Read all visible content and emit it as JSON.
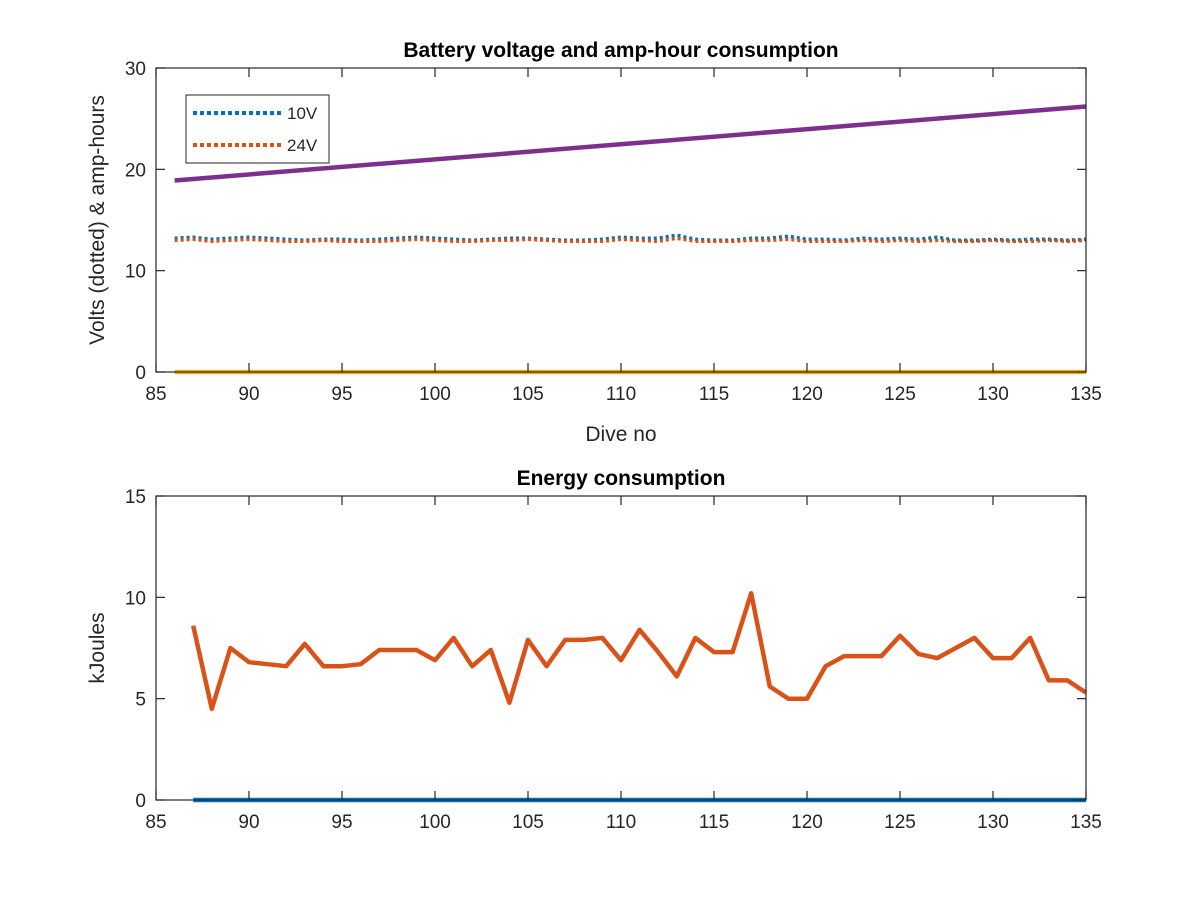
{
  "colors": {
    "blue": "#0072BD",
    "orange": "#D95319",
    "yellow": "#EDB120",
    "purple": "#7E2F8E",
    "axis": "#262626"
  },
  "chart_data": [
    {
      "type": "line",
      "title": "Battery voltage and amp-hour consumption",
      "xlabel": "Dive no",
      "ylabel": "Volts (dotted) & amp-hours",
      "xlim": [
        85,
        135
      ],
      "ylim": [
        0,
        30
      ],
      "xticks": [
        85,
        90,
        95,
        100,
        105,
        110,
        115,
        120,
        125,
        130,
        135
      ],
      "yticks": [
        0,
        10,
        20,
        30
      ],
      "legend_position": "top-left",
      "series": [
        {
          "name": "10V",
          "style": "dotted",
          "color": "#0072BD",
          "x": [
            86,
            87,
            88,
            89,
            90,
            91,
            92,
            93,
            94,
            95,
            96,
            97,
            98,
            99,
            100,
            101,
            102,
            103,
            104,
            105,
            106,
            107,
            108,
            109,
            110,
            111,
            112,
            113,
            114,
            115,
            116,
            117,
            118,
            119,
            120,
            121,
            122,
            123,
            124,
            125,
            126,
            127,
            128,
            129,
            130,
            131,
            132,
            133,
            134,
            135
          ],
          "y": [
            13.2,
            13.3,
            13.1,
            13.2,
            13.3,
            13.2,
            13.1,
            13.0,
            13.1,
            13.1,
            13.0,
            13.1,
            13.2,
            13.3,
            13.2,
            13.1,
            13.0,
            13.1,
            13.2,
            13.2,
            13.1,
            13.0,
            13.0,
            13.1,
            13.3,
            13.2,
            13.2,
            13.5,
            13.1,
            13.0,
            13.0,
            13.2,
            13.2,
            13.4,
            13.1,
            13.1,
            13.0,
            13.2,
            13.1,
            13.2,
            13.1,
            13.3,
            13.0,
            13.0,
            13.1,
            13.0,
            13.1,
            13.1,
            13.0,
            13.1
          ]
        },
        {
          "name": "24V",
          "style": "dotted",
          "color": "#D95319",
          "x": [
            86,
            87,
            88,
            89,
            90,
            91,
            92,
            93,
            94,
            95,
            96,
            97,
            98,
            99,
            100,
            101,
            102,
            103,
            104,
            105,
            106,
            107,
            108,
            109,
            110,
            111,
            112,
            113,
            114,
            115,
            116,
            117,
            118,
            119,
            120,
            121,
            122,
            123,
            124,
            125,
            126,
            127,
            128,
            129,
            130,
            131,
            132,
            133,
            134,
            135
          ],
          "y": [
            13.0,
            13.1,
            12.9,
            13.0,
            13.1,
            13.0,
            12.9,
            12.9,
            13.0,
            12.9,
            12.9,
            12.9,
            13.0,
            13.1,
            13.0,
            12.9,
            12.9,
            13.0,
            13.0,
            13.1,
            13.0,
            12.9,
            12.9,
            12.9,
            13.1,
            13.0,
            12.9,
            13.2,
            12.9,
            12.9,
            12.9,
            13.0,
            13.0,
            13.1,
            12.9,
            12.9,
            12.9,
            13.0,
            12.9,
            13.0,
            12.9,
            13.0,
            12.9,
            12.9,
            13.0,
            12.9,
            12.9,
            13.0,
            12.9,
            13.0
          ]
        },
        {
          "style": "solid",
          "color": "#EDB120",
          "x": [
            86,
            135
          ],
          "y": [
            0,
            0
          ]
        },
        {
          "style": "solid",
          "color": "#7E2F8E",
          "x": [
            86,
            135
          ],
          "y": [
            18.9,
            26.2
          ]
        }
      ]
    },
    {
      "type": "line",
      "title": "Energy consumption",
      "xlabel": "",
      "ylabel": "kJoules",
      "xlim": [
        85,
        135
      ],
      "ylim": [
        0,
        15
      ],
      "xticks": [
        85,
        90,
        95,
        100,
        105,
        110,
        115,
        120,
        125,
        130,
        135
      ],
      "yticks": [
        0,
        5,
        10,
        15
      ],
      "series": [
        {
          "style": "solid",
          "color": "#0072BD",
          "x": [
            87,
            135
          ],
          "y": [
            0,
            0
          ]
        },
        {
          "style": "solid",
          "color": "#D95319",
          "x": [
            87,
            88,
            89,
            90,
            91,
            92,
            93,
            94,
            95,
            96,
            97,
            98,
            99,
            100,
            101,
            102,
            103,
            104,
            105,
            106,
            107,
            108,
            109,
            110,
            111,
            112,
            113,
            114,
            115,
            116,
            117,
            118,
            119,
            120,
            121,
            122,
            123,
            124,
            125,
            126,
            127,
            128,
            129,
            130,
            131,
            132,
            133,
            134,
            135
          ],
          "y": [
            8.6,
            4.5,
            7.5,
            6.8,
            6.7,
            6.6,
            7.7,
            6.6,
            6.6,
            6.7,
            7.4,
            7.4,
            7.4,
            6.9,
            8.0,
            6.6,
            7.4,
            4.8,
            7.9,
            6.6,
            7.9,
            7.9,
            8.0,
            6.9,
            8.4,
            7.3,
            6.1,
            8.0,
            7.3,
            7.3,
            10.2,
            5.6,
            5.0,
            5.0,
            6.6,
            7.1,
            7.1,
            7.1,
            8.1,
            7.2,
            7.0,
            7.5,
            8.0,
            7.0,
            7.0,
            8.0,
            5.9,
            5.9,
            5.3
          ]
        }
      ]
    }
  ]
}
